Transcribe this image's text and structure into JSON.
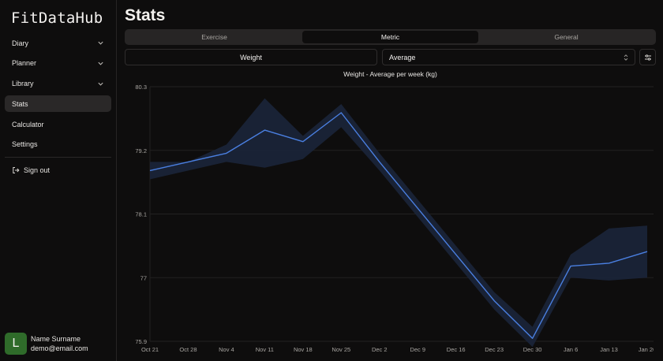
{
  "sidebar": {
    "logo": "FitDataHub",
    "items": [
      {
        "label": "Diary",
        "expandable": true,
        "active": false
      },
      {
        "label": "Planner",
        "expandable": true,
        "active": false
      },
      {
        "label": "Library",
        "expandable": true,
        "active": false
      },
      {
        "label": "Stats",
        "expandable": false,
        "active": true
      },
      {
        "label": "Calculator",
        "expandable": false,
        "active": false
      },
      {
        "label": "Settings",
        "expandable": false,
        "active": false
      }
    ],
    "signout_label": "Sign out",
    "user": {
      "initial": "L",
      "name": "Name Surname",
      "email": "demo@email.com",
      "avatar_color": "#2f6b2a"
    }
  },
  "main": {
    "title": "Stats",
    "tabs": [
      {
        "label": "Exercise",
        "active": false
      },
      {
        "label": "Metric",
        "active": true
      },
      {
        "label": "General",
        "active": false
      }
    ],
    "metric_select": "Weight",
    "aggregation_select": "Average",
    "filter_icon": "sliders-icon"
  },
  "colors": {
    "line": "#4a7fe0",
    "band": "#1a2438",
    "background": "#0e0d0d",
    "grid": "#222121"
  },
  "chart_data": {
    "type": "line",
    "title": "Weight - Average per week (kg)",
    "x": [
      "Oct 21",
      "Oct 28",
      "Nov 4",
      "Nov 11",
      "Nov 18",
      "Nov 25",
      "Dec 2",
      "Dec 9",
      "Dec 16",
      "Dec 23",
      "Dec 30",
      "Jan 6",
      "Jan 13",
      "Jan 20"
    ],
    "y_ticks": [
      "80.3",
      "79.2",
      "78.1",
      "77",
      "75.9"
    ],
    "ylim": [
      75.9,
      80.3
    ],
    "series": [
      {
        "values": [
          78.85,
          79.0,
          79.15,
          79.55,
          79.35,
          79.85,
          79.0,
          78.2,
          77.4,
          76.6,
          75.95,
          77.2,
          77.25,
          77.45
        ],
        "upper": [
          79.0,
          79.0,
          79.3,
          80.1,
          79.45,
          80.0,
          79.15,
          78.35,
          77.55,
          76.75,
          76.15,
          77.4,
          77.85,
          77.9
        ],
        "lower": [
          78.7,
          78.85,
          79.0,
          78.9,
          79.05,
          79.6,
          78.85,
          78.05,
          77.25,
          76.45,
          75.8,
          77.0,
          76.95,
          77.0
        ]
      }
    ],
    "grid": true,
    "legend": "none"
  }
}
